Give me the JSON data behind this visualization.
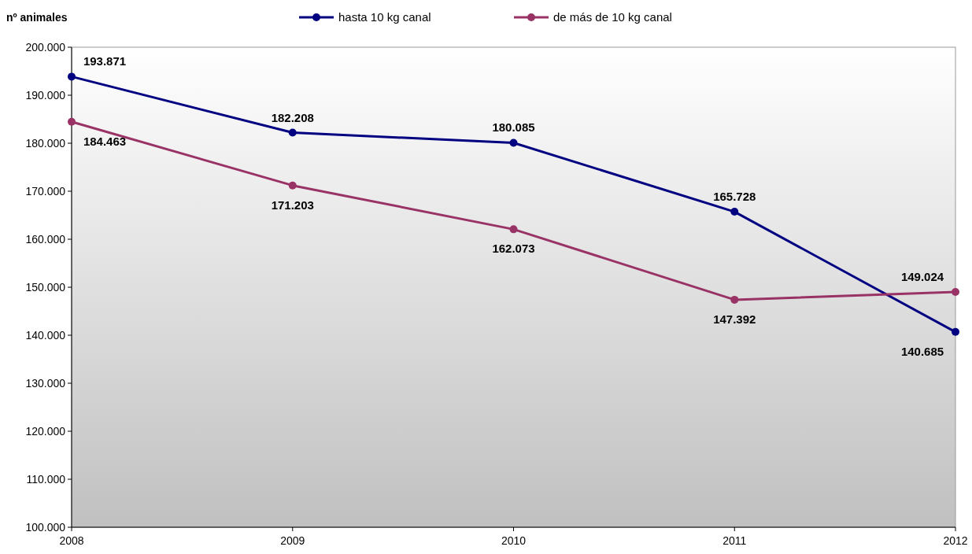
{
  "chart_data": {
    "type": "line",
    "ylabel": "nº animales",
    "categories": [
      "2008",
      "2009",
      "2010",
      "2011",
      "2012"
    ],
    "series": [
      {
        "name": "hasta 10 kg canal",
        "color": "#000080",
        "values": [
          193871,
          182208,
          180085,
          165728,
          140685
        ],
        "value_labels": [
          "193.871",
          "182.208",
          "180.085",
          "165.728",
          "140.685"
        ]
      },
      {
        "name": "de más de 10 kg canal",
        "color": "#993366",
        "values": [
          184463,
          171203,
          162073,
          147392,
          149024
        ],
        "value_labels": [
          "184.463",
          "171.203",
          "162.073",
          "147.392",
          "149.024"
        ]
      }
    ],
    "ylim": [
      100000,
      200000
    ],
    "yticks": [
      {
        "value": 100000,
        "label": "100.000"
      },
      {
        "value": 110000,
        "label": "110.000"
      },
      {
        "value": 120000,
        "label": "120.000"
      },
      {
        "value": 130000,
        "label": "130.000"
      },
      {
        "value": 140000,
        "label": "140.000"
      },
      {
        "value": 150000,
        "label": "150.000"
      },
      {
        "value": 160000,
        "label": "160.000"
      },
      {
        "value": 170000,
        "label": "170.000"
      },
      {
        "value": 180000,
        "label": "180.000"
      },
      {
        "value": 190000,
        "label": "190.000"
      },
      {
        "value": 200000,
        "label": "200.000"
      }
    ],
    "marker": "circle",
    "line_style": "solid",
    "legend": "top",
    "grid": false
  }
}
